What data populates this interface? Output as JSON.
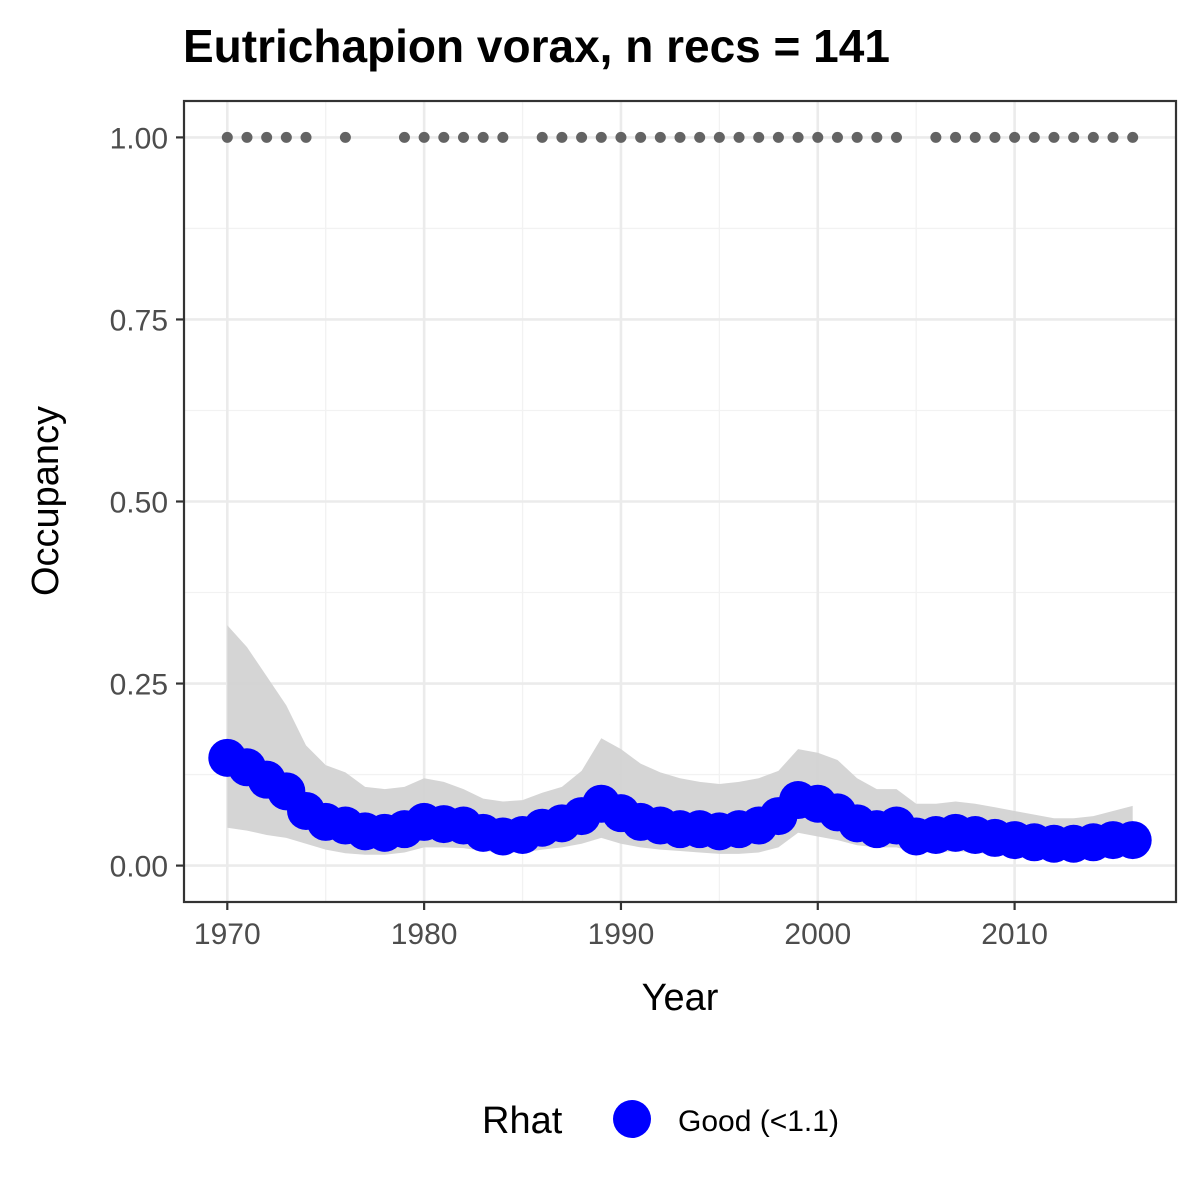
{
  "chart_data": {
    "type": "line",
    "title": "Eutrichapion vorax, n recs = 141",
    "xlabel": "Year",
    "ylabel": "Occupancy",
    "xlim": [
      1967.8,
      2018.2
    ],
    "ylim": [
      -0.05,
      1.05
    ],
    "x_ticks": [
      1970,
      1980,
      1990,
      2000,
      2010
    ],
    "x_tick_labels": [
      "1970",
      "1980",
      "1990",
      "2000",
      "2010"
    ],
    "y_ticks": [
      0,
      0.25,
      0.5,
      0.75,
      1
    ],
    "y_tick_labels": [
      "0.00",
      "0.25",
      "0.50",
      "0.75",
      "1.00"
    ],
    "grid": true,
    "legend": {
      "title": "Rhat",
      "placement": "bottom",
      "entries": [
        {
          "label": "Good (<1.1)",
          "color": "#0000ff"
        }
      ]
    },
    "series": [
      {
        "name": "Good (<1.1)",
        "kind": "line+points",
        "color": "#0000ff",
        "x": [
          1970,
          1971,
          1972,
          1973,
          1974,
          1975,
          1976,
          1977,
          1978,
          1979,
          1980,
          1981,
          1982,
          1983,
          1984,
          1985,
          1986,
          1987,
          1988,
          1989,
          1990,
          1991,
          1992,
          1993,
          1994,
          1995,
          1996,
          1997,
          1998,
          1999,
          2000,
          2001,
          2002,
          2003,
          2004,
          2005,
          2006,
          2007,
          2008,
          2009,
          2010,
          2011,
          2012,
          2013,
          2014,
          2015,
          2016
        ],
        "y": [
          0.148,
          0.135,
          0.118,
          0.102,
          0.075,
          0.06,
          0.055,
          0.047,
          0.045,
          0.05,
          0.06,
          0.057,
          0.055,
          0.045,
          0.04,
          0.042,
          0.052,
          0.058,
          0.068,
          0.085,
          0.072,
          0.06,
          0.055,
          0.05,
          0.05,
          0.047,
          0.05,
          0.055,
          0.068,
          0.09,
          0.085,
          0.073,
          0.058,
          0.05,
          0.055,
          0.04,
          0.042,
          0.045,
          0.042,
          0.038,
          0.035,
          0.032,
          0.03,
          0.03,
          0.032,
          0.035,
          0.035
        ]
      },
      {
        "name": "credible interval",
        "kind": "ribbon",
        "color": "#d3d3d3",
        "x": [
          1970,
          1971,
          1972,
          1973,
          1974,
          1975,
          1976,
          1977,
          1978,
          1979,
          1980,
          1981,
          1982,
          1983,
          1984,
          1985,
          1986,
          1987,
          1988,
          1989,
          1990,
          1991,
          1992,
          1993,
          1994,
          1995,
          1996,
          1997,
          1998,
          1999,
          2000,
          2001,
          2002,
          2003,
          2004,
          2005,
          2006,
          2007,
          2008,
          2009,
          2010,
          2011,
          2012,
          2013,
          2014,
          2015,
          2016
        ],
        "lower": [
          0.052,
          0.048,
          0.042,
          0.038,
          0.03,
          0.022,
          0.017,
          0.015,
          0.015,
          0.018,
          0.025,
          0.025,
          0.024,
          0.02,
          0.018,
          0.018,
          0.022,
          0.025,
          0.03,
          0.038,
          0.03,
          0.025,
          0.022,
          0.02,
          0.018,
          0.016,
          0.016,
          0.018,
          0.025,
          0.045,
          0.04,
          0.035,
          0.028,
          0.025,
          0.025,
          0.018,
          0.018,
          0.02,
          0.018,
          0.015,
          0.014,
          0.013,
          0.012,
          0.012,
          0.012,
          0.013,
          0.013
        ],
        "upper": [
          0.33,
          0.3,
          0.26,
          0.22,
          0.165,
          0.138,
          0.128,
          0.108,
          0.105,
          0.108,
          0.12,
          0.115,
          0.105,
          0.092,
          0.088,
          0.09,
          0.1,
          0.108,
          0.13,
          0.175,
          0.16,
          0.14,
          0.128,
          0.12,
          0.115,
          0.112,
          0.115,
          0.12,
          0.13,
          0.16,
          0.155,
          0.145,
          0.12,
          0.105,
          0.105,
          0.085,
          0.085,
          0.088,
          0.085,
          0.08,
          0.075,
          0.07,
          0.065,
          0.065,
          0.068,
          0.075,
          0.082
        ]
      },
      {
        "name": "records",
        "kind": "points",
        "color": "#636363",
        "x": [
          1970,
          1971,
          1972,
          1973,
          1974,
          1976,
          1979,
          1980,
          1981,
          1982,
          1983,
          1984,
          1986,
          1987,
          1988,
          1989,
          1990,
          1991,
          1992,
          1993,
          1994,
          1995,
          1996,
          1997,
          1998,
          1999,
          2000,
          2001,
          2002,
          2003,
          2004,
          2006,
          2007,
          2008,
          2009,
          2010,
          2011,
          2012,
          2013,
          2014,
          2015,
          2016
        ],
        "y": [
          1,
          1,
          1,
          1,
          1,
          1,
          1,
          1,
          1,
          1,
          1,
          1,
          1,
          1,
          1,
          1,
          1,
          1,
          1,
          1,
          1,
          1,
          1,
          1,
          1,
          1,
          1,
          1,
          1,
          1,
          1,
          1,
          1,
          1,
          1,
          1,
          1,
          1,
          1,
          1,
          1,
          1
        ]
      }
    ]
  }
}
